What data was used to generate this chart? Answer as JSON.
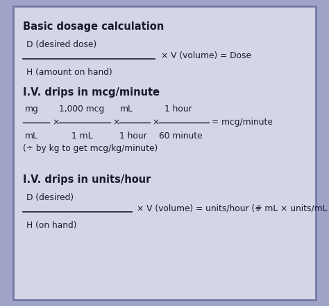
{
  "bg_color": "#9fa3c8",
  "inner_bg_color": "#d4d6e8",
  "border_color": "#7478a8",
  "text_color": "#1a1a2e",
  "fig_width": 4.74,
  "fig_height": 4.42,
  "dpi": 100,
  "fs_title": 10.5,
  "fs_body": 8.8,
  "section1": {
    "title": "Basic dosage calculation",
    "num": "D (desired dose)",
    "den": "H (amount on hand)",
    "rhs": "× V (volume) = Dose"
  },
  "section2": {
    "title": "I.V. drips in mcg/minute",
    "note": "(÷ by kg to get mcg/kg/minute)",
    "fracs": [
      {
        "num": "mg",
        "den": "mL"
      },
      {
        "num": "1,000 mcg",
        "den": "1 mL"
      },
      {
        "num": "mL",
        "den": "1 hour"
      },
      {
        "num": "1 hour",
        "den": "60 minute"
      }
    ],
    "result": "= mcg/minute"
  },
  "section3": {
    "title": "I.V. drips in units/hour",
    "num": "D (desired)",
    "den": "H (on hand)",
    "rhs": "× V (volume) = units/hour (# mL × units/mL = dose)"
  }
}
